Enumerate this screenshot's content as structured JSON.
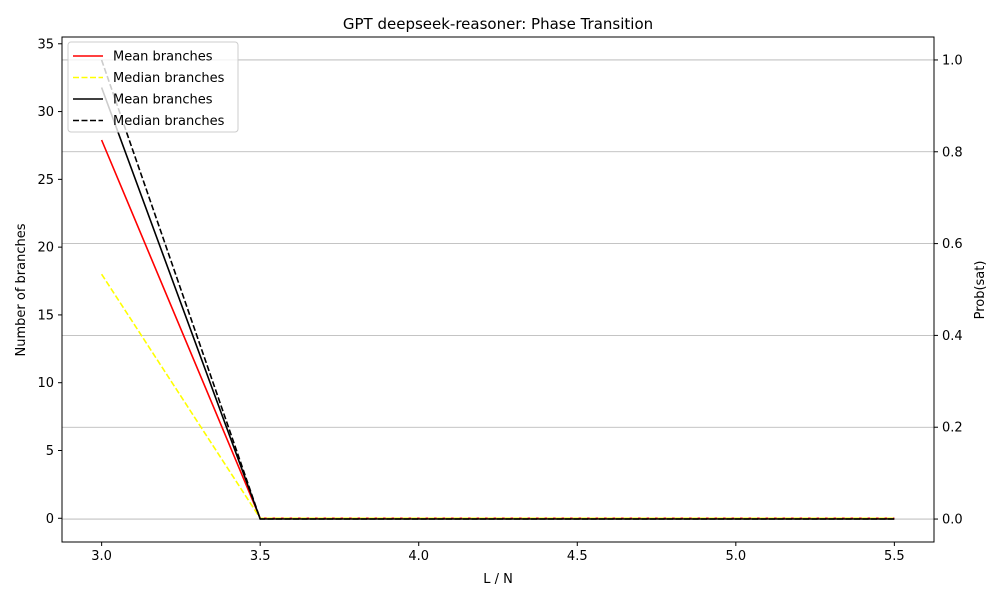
{
  "chart_data": {
    "type": "line",
    "title": "GPT deepseek-reasoner: Phase Transition",
    "xlabel": "L / N",
    "ylabel_left": "Number of branches",
    "ylabel_right": "Prob(sat)",
    "x": [
      3.0,
      3.5,
      4.0,
      4.5,
      5.0,
      5.5
    ],
    "xlim": [
      2.875,
      5.625
    ],
    "ylim_left": [
      -1.75,
      35.5
    ],
    "ylim_right": [
      -0.05,
      1.05
    ],
    "xticks": [
      "3.0",
      "3.5",
      "4.0",
      "4.5",
      "5.0",
      "5.5"
    ],
    "yticks_left": [
      "0",
      "5",
      "10",
      "15",
      "20",
      "25",
      "30",
      "35"
    ],
    "yticks_right": [
      "0.0",
      "0.2",
      "0.4",
      "0.6",
      "0.8",
      "1.0"
    ],
    "grid": "right-axis horizontal",
    "legend_position": "top-left",
    "series": [
      {
        "name": "Mean branches",
        "axis": "left",
        "color": "#ff0000",
        "dash": "solid",
        "values": [
          27.9,
          0,
          0,
          0,
          0,
          0
        ]
      },
      {
        "name": "Median branches",
        "axis": "left",
        "color": "#ffff00",
        "dash": "dashed",
        "values": [
          18,
          0,
          0,
          0,
          0,
          0
        ]
      },
      {
        "name": "Mean branches",
        "axis": "right",
        "color": "#000000",
        "dash": "solid",
        "values": [
          0.94,
          0,
          0,
          0,
          0,
          0
        ]
      },
      {
        "name": "Median branches",
        "axis": "right",
        "color": "#000000",
        "dash": "dashed",
        "values": [
          1.0,
          0,
          0,
          0,
          0,
          0
        ]
      }
    ]
  }
}
